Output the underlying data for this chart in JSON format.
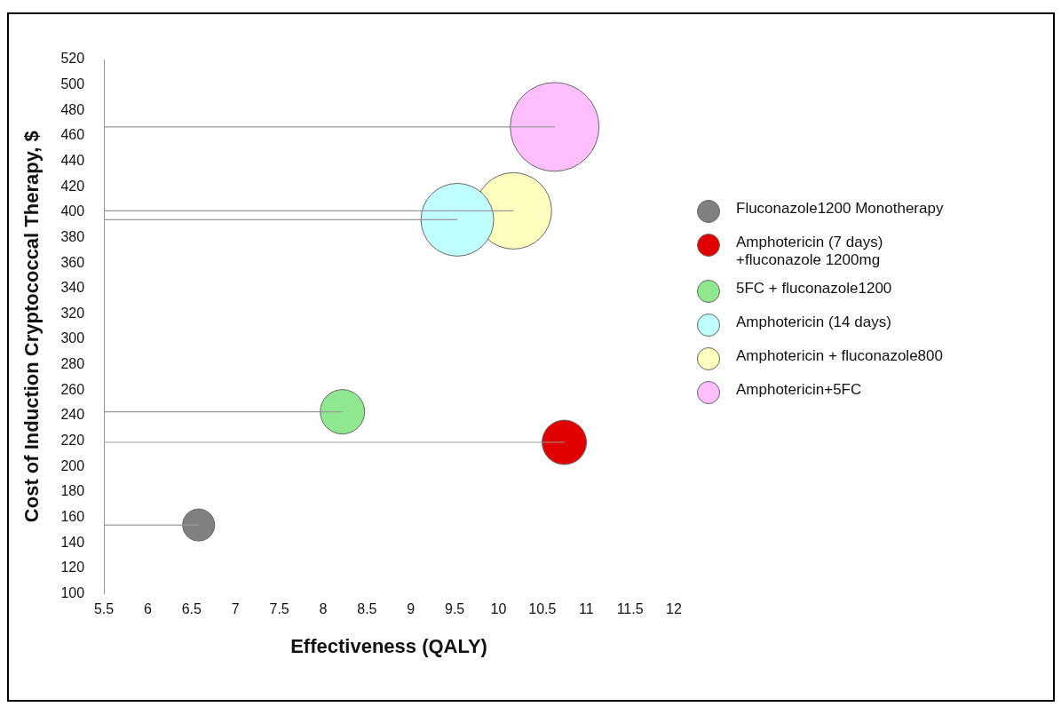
{
  "chart_data": {
    "type": "bubble",
    "xlabel": "Effectiveness (QALY)",
    "ylabel": "Cost of Induction Cryptococcal Therapy, $",
    "xlim": [
      5.5,
      12
    ],
    "xticks": [
      5.5,
      6,
      6.5,
      7,
      7.5,
      8,
      8.5,
      9,
      9.5,
      10,
      10.5,
      11,
      11.5,
      12
    ],
    "ylim": [
      100,
      520
    ],
    "yticks": [
      100,
      120,
      140,
      160,
      180,
      200,
      220,
      240,
      260,
      280,
      300,
      320,
      340,
      360,
      380,
      400,
      420,
      440,
      460,
      480,
      500,
      520
    ],
    "grid": false,
    "legend": "right",
    "marker": "circle",
    "series": [
      {
        "type": "line",
        "marker": "none",
        "color": "#999999",
        "x": [
          5.5,
          6.58
        ],
        "values": [
          154,
          154
        ]
      },
      {
        "type": "line",
        "marker": "none",
        "color": "#999999",
        "x": [
          5.5,
          10.75
        ],
        "values": [
          219,
          219
        ]
      },
      {
        "type": "line",
        "marker": "none",
        "color": "#999999",
        "x": [
          5.5,
          8.22
        ],
        "values": [
          243,
          243
        ]
      },
      {
        "type": "line",
        "marker": "none",
        "color": "#999999",
        "x": [
          5.5,
          9.53
        ],
        "values": [
          394,
          394
        ]
      },
      {
        "type": "line",
        "marker": "none",
        "color": "#999999",
        "x": [
          5.5,
          10.17
        ],
        "values": [
          401,
          401
        ]
      },
      {
        "type": "line",
        "marker": "none",
        "color": "#999999",
        "x": [
          5.5,
          10.64
        ],
        "values": [
          467,
          467
        ]
      },
      {
        "name": "Fluconazole1200 Monotherapy",
        "color": "#808080",
        "x": [
          6.58
        ],
        "values": [
          154
        ],
        "sizes": [
          0.13
        ]
      },
      {
        "name": "Amphotericin (7 days) +fluconazole 1200mg",
        "color": "#e00000",
        "x": [
          10.75
        ],
        "values": [
          219
        ],
        "sizes": [
          0.25
        ]
      },
      {
        "name": "5FC + fluconazole1200",
        "color": "#8fe88f",
        "x": [
          8.22
        ],
        "values": [
          243
        ],
        "sizes": [
          0.25
        ]
      },
      {
        "name": "Amphotericin (14 days)",
        "color": "#bfffff",
        "x": [
          9.53
        ],
        "values": [
          394
        ],
        "sizes": [
          0.67
        ]
      },
      {
        "name": "Amphotericin + fluconazole800",
        "color": "#ffffc0",
        "x": [
          10.17
        ],
        "values": [
          401
        ],
        "sizes": [
          0.74
        ]
      },
      {
        "name": "Amphotericin+5FC",
        "color": "#ffbfff",
        "x": [
          10.64
        ],
        "values": [
          467
        ],
        "sizes": [
          1
        ]
      }
    ]
  }
}
